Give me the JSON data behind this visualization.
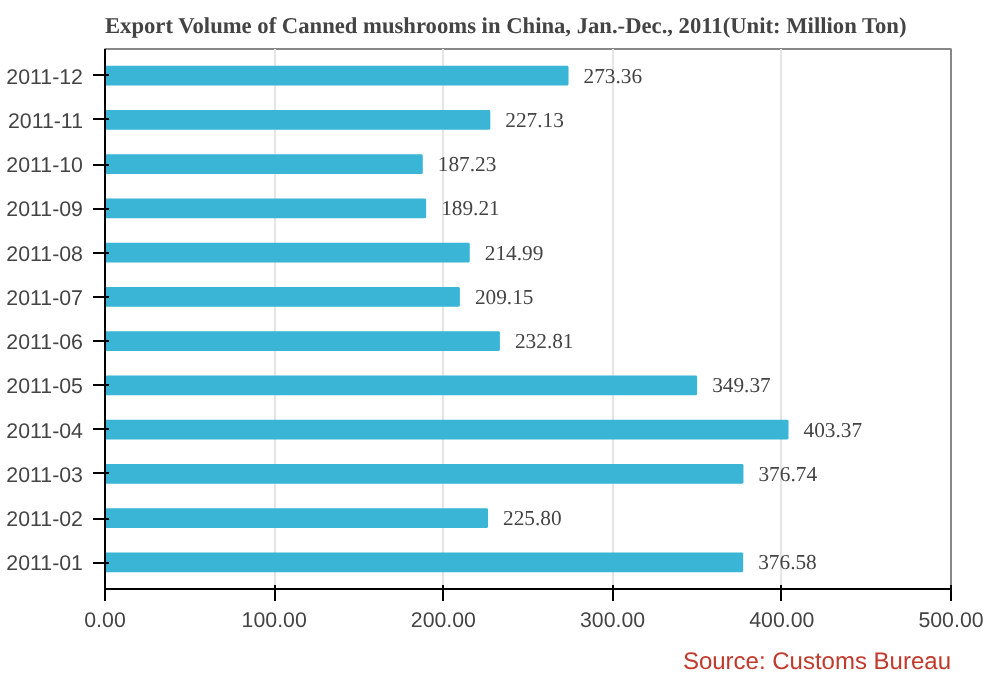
{
  "chart_data": {
    "type": "bar",
    "orientation": "horizontal",
    "title": "Export Volume of Canned mushrooms in China, Jan.-Dec., 2011(Unit: Million Ton)",
    "categories": [
      "2011-12",
      "2011-11",
      "2011-10",
      "2011-09",
      "2011-08",
      "2011-07",
      "2011-06",
      "2011-05",
      "2011-04",
      "2011-03",
      "2011-02",
      "2011-01"
    ],
    "values": [
      273.36,
      227.13,
      187.23,
      189.21,
      214.99,
      209.15,
      232.81,
      349.37,
      403.37,
      376.74,
      225.8,
      376.58
    ],
    "value_labels": [
      "273.36",
      "227.13",
      "187.23",
      "189.21",
      "214.99",
      "209.15",
      "232.81",
      "349.37",
      "403.37",
      "376.74",
      "225.80",
      "376.58"
    ],
    "color": "#3ab5d6",
    "xlim": [
      0,
      500
    ],
    "xticks": [
      {
        "value": 0,
        "label": "0.00"
      },
      {
        "value": 100,
        "label": "100.00"
      },
      {
        "value": 200,
        "label": "200.00"
      },
      {
        "value": 300,
        "label": "300.00"
      },
      {
        "value": 400,
        "label": "400.00"
      },
      {
        "value": 500,
        "label": "500.00"
      }
    ],
    "grid": "x",
    "annotations": [
      "Source: Customs Bureau"
    ]
  }
}
